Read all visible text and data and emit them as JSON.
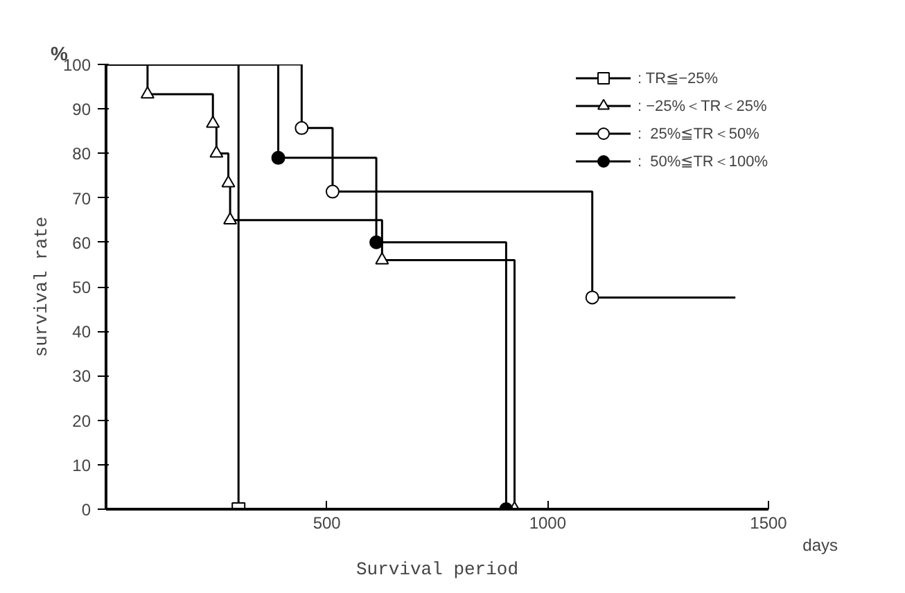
{
  "chart_data": {
    "type": "step",
    "xlabel": "Survival period",
    "ylabel": "survival rate",
    "annotations": [
      "%",
      "days"
    ],
    "xlim": [
      0,
      1500
    ],
    "ylim": [
      0,
      100
    ],
    "xticks": [
      {
        "value": 0,
        "label": null
      },
      500,
      1000,
      1500
    ],
    "yticks": [
      0,
      10,
      20,
      30,
      40,
      50,
      60,
      70,
      80,
      90,
      100
    ],
    "grid": false,
    "legend": "top right",
    "line_style": "solid",
    "series": [
      {
        "name": ": TR≦−25%",
        "color": "#000000",
        "marker": "square",
        "colors": [
          null,
          "#ffffff"
        ],
        "x": [
          0,
          300
        ],
        "values": [
          100,
          0
        ]
      },
      {
        "name": ": −25%＜TR＜25%",
        "color": "#000000",
        "marker": "triangle",
        "colors": [
          null,
          "#ffffff",
          "#ffffff",
          "#ffffff",
          "#ffffff",
          "#ffffff",
          "#ffffff",
          "#ffffff"
        ],
        "x": [
          0,
          94,
          242,
          250,
          277,
          281,
          625,
          925
        ],
        "values": [
          100,
          93.3,
          86.7,
          80,
          73.3,
          65,
          56,
          0
        ]
      },
      {
        "name": ":  25%≦TR＜50%",
        "color": "#000000",
        "marker": "circle",
        "colors": [
          null,
          "#ffffff",
          "#ffffff",
          "#ffffff",
          null
        ],
        "x": [
          0,
          443,
          513,
          1101,
          1425
        ],
        "values": [
          100,
          85.7,
          71.4,
          47.6,
          47.6
        ]
      },
      {
        "name": ":  50%≦TR＜100%",
        "color": "#000000",
        "marker": "circle",
        "colors": [
          null,
          "#000000",
          "#000000",
          "#000000"
        ],
        "x": [
          0,
          390,
          612,
          906
        ],
        "values": [
          100,
          79,
          60,
          0
        ]
      }
    ]
  }
}
